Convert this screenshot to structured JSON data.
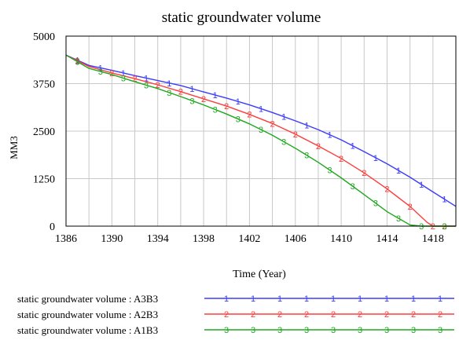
{
  "chart_data": {
    "type": "line",
    "title": "static groundwater volume",
    "xlabel": "Time (Year)",
    "ylabel": "MM3",
    "xlim": [
      1386,
      1420
    ],
    "ylim": [
      0,
      5000
    ],
    "xticks": [
      "1386",
      "1390",
      "1394",
      "1398",
      "1402",
      "1406",
      "1410",
      "1414",
      "1418"
    ],
    "xtick_values": [
      1386,
      1390,
      1394,
      1398,
      1402,
      1406,
      1410,
      1414,
      1418
    ],
    "yticks": [
      "5000",
      "3750",
      "2500",
      "1250",
      "0"
    ],
    "ytick_values": [
      5000,
      3750,
      2500,
      1250,
      0
    ],
    "grid": true,
    "legend_position": "bottom",
    "series": [
      {
        "name": "static groundwater volume : A3B3",
        "marker": "1",
        "color": "#3b3bff",
        "x": [
          1386,
          1388,
          1390,
          1392,
          1394,
          1396,
          1398,
          1400,
          1402,
          1404,
          1406,
          1408,
          1410,
          1412,
          1414,
          1416,
          1418,
          1420
        ],
        "values": [
          4500,
          4230,
          4100,
          3960,
          3830,
          3700,
          3530,
          3370,
          3190,
          2990,
          2770,
          2540,
          2270,
          1960,
          1640,
          1290,
          900,
          520
        ],
        "marker_x": [
          1387,
          1389,
          1391,
          1393,
          1395,
          1397,
          1399,
          1401,
          1403,
          1405,
          1407,
          1409,
          1411,
          1413,
          1415,
          1417,
          1419
        ]
      },
      {
        "name": "static groundwater volume : A2B3",
        "marker": "2",
        "color": "#ff3b3b",
        "x": [
          1386,
          1388,
          1390,
          1392,
          1394,
          1396,
          1398,
          1400,
          1402,
          1404,
          1406,
          1408,
          1410,
          1412,
          1414,
          1416,
          1417.5,
          1418,
          1420
        ],
        "values": [
          4500,
          4200,
          4030,
          3880,
          3720,
          3540,
          3350,
          3160,
          2940,
          2700,
          2420,
          2110,
          1780,
          1400,
          980,
          520,
          100,
          0,
          0
        ],
        "marker_x": [
          1387,
          1390,
          1392,
          1394,
          1396,
          1398,
          1400,
          1402,
          1404,
          1406,
          1408,
          1410,
          1412,
          1414,
          1416,
          1418,
          1419
        ]
      },
      {
        "name": "static groundwater volume : A1B3",
        "marker": "3",
        "color": "#1ea81e",
        "x": [
          1386,
          1388,
          1390,
          1392,
          1394,
          1396,
          1398,
          1400,
          1402,
          1404,
          1406,
          1408,
          1410,
          1412,
          1414,
          1416,
          1417,
          1418,
          1420
        ],
        "values": [
          4500,
          4150,
          3990,
          3800,
          3620,
          3410,
          3190,
          2950,
          2690,
          2390,
          2050,
          1680,
          1270,
          830,
          380,
          30,
          0,
          0,
          0
        ],
        "marker_x": [
          1387,
          1389,
          1391,
          1393,
          1395,
          1397,
          1399,
          1401,
          1403,
          1405,
          1407,
          1409,
          1411,
          1413,
          1415,
          1417,
          1419
        ]
      }
    ]
  }
}
